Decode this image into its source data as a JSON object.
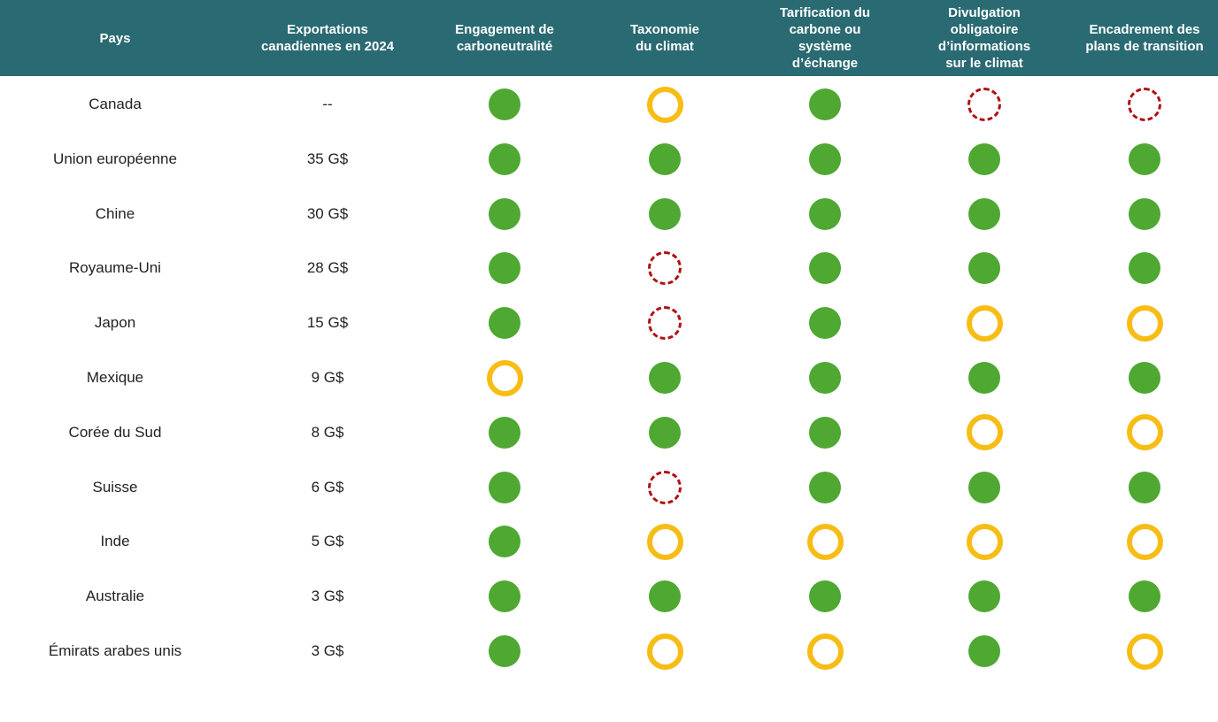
{
  "colors": {
    "header": "#2a6a72",
    "green": "#4ea832",
    "yellow": "#f7bd15",
    "red": "#b01010"
  },
  "chart_data": {
    "type": "table",
    "columns": [
      "Pays",
      "Exportations\ncanadiennes en 2024",
      "Engagement de\ncarboneutralité",
      "Taxonomie\ndu climat",
      "Tarification du\ncarbone ou\nsystème\nd’échange",
      "Divulgation\nobligatoire\nd’informations\nsur le climat",
      "Encadrement des\nplans de transition"
    ],
    "status_legend": {
      "g": "filled-green-circle",
      "y": "yellow-ring",
      "r": "red-dashed-circle"
    },
    "rows": [
      {
        "country": "Canada",
        "exports": "--",
        "status": [
          "g",
          "y",
          "g",
          "r",
          "r"
        ]
      },
      {
        "country": "Union européenne",
        "exports": "35 G$",
        "status": [
          "g",
          "g",
          "g",
          "g",
          "g"
        ]
      },
      {
        "country": "Chine",
        "exports": "30 G$",
        "status": [
          "g",
          "g",
          "g",
          "g",
          "g"
        ]
      },
      {
        "country": "Royaume-Uni",
        "exports": "28 G$",
        "status": [
          "g",
          "r",
          "g",
          "g",
          "g"
        ]
      },
      {
        "country": "Japon",
        "exports": "15 G$",
        "status": [
          "g",
          "r",
          "g",
          "y",
          "y"
        ]
      },
      {
        "country": "Mexique",
        "exports": "9 G$",
        "status": [
          "y",
          "g",
          "g",
          "g",
          "g"
        ]
      },
      {
        "country": "Corée du Sud",
        "exports": "8 G$",
        "status": [
          "g",
          "g",
          "g",
          "y",
          "y"
        ]
      },
      {
        "country": "Suisse",
        "exports": "6 G$",
        "status": [
          "g",
          "r",
          "g",
          "g",
          "g"
        ]
      },
      {
        "country": "Inde",
        "exports": "5 G$",
        "status": [
          "g",
          "y",
          "y",
          "y",
          "y"
        ]
      },
      {
        "country": "Australie",
        "exports": "3 G$",
        "status": [
          "g",
          "g",
          "g",
          "g",
          "g"
        ]
      },
      {
        "country": "Émirats arabes unis",
        "exports": "3 G$",
        "status": [
          "g",
          "y",
          "y",
          "g",
          "y"
        ]
      }
    ]
  }
}
